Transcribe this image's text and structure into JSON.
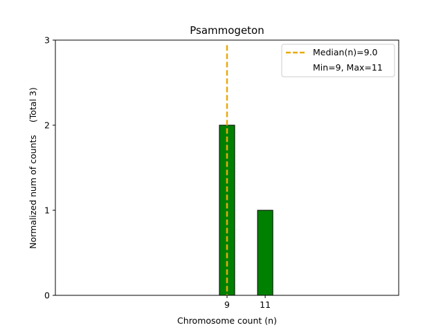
{
  "chart_data": {
    "type": "bar",
    "title": "Psammogeton",
    "xlabel": "Chromosome count (n)",
    "ylabel": "Normalized num of counts",
    "ylabel_note": "(Total 3)",
    "x": [
      9,
      11
    ],
    "values": [
      2,
      1
    ],
    "xticks": [
      "9",
      "11"
    ],
    "yticks": [
      "0",
      "1",
      "2",
      "3"
    ],
    "xlim": [
      0,
      18
    ],
    "ylim": [
      0,
      3
    ],
    "bar_color": "#008000",
    "bar_edge_color": "#000000",
    "median": 9.0,
    "median_color": "#e8a90c",
    "legend_placement": "top-right",
    "legend": {
      "median_label": "Median(n)=9.0",
      "range_label": "Min=9, Max=11"
    }
  }
}
